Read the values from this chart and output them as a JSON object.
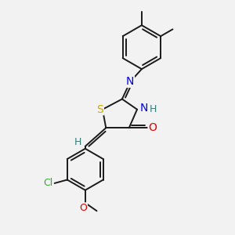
{
  "bg_color": "#f2f2f2",
  "bond_color": "#1a1a1a",
  "bond_width": 1.4,
  "atom_colors": {
    "S": "#ccaa00",
    "N": "#0000ee",
    "O": "#dd0000",
    "Cl": "#33aa33",
    "C": "#1a1a1a",
    "H": "#3a7a7a"
  },
  "fig_size": [
    3.0,
    3.0
  ],
  "dpi": 100,
  "xlim": [
    0,
    10
  ],
  "ylim": [
    0,
    10
  ]
}
